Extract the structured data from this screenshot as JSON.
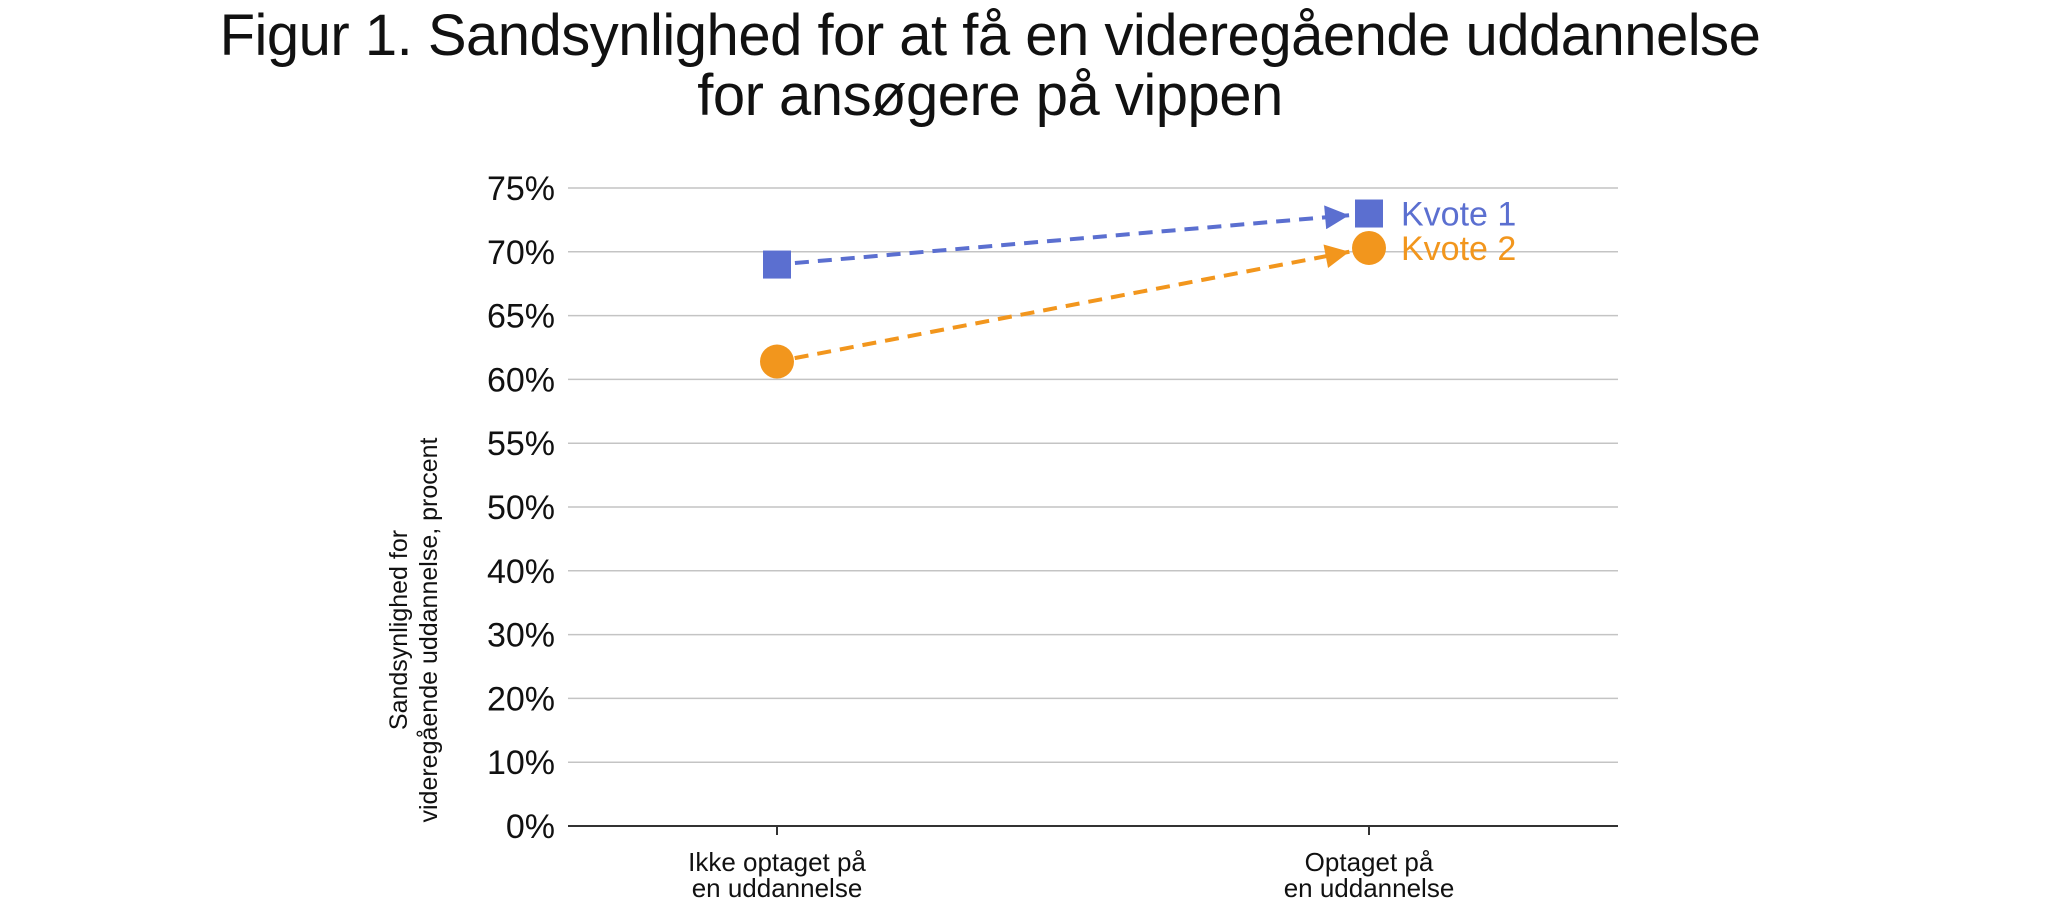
{
  "chart_data": {
    "type": "line",
    "title_lines": [
      "Figur 1. Sandsynlighed for at få en videregående uddannelse",
      "for ansøgere på vippen"
    ],
    "ylabel_lines": [
      "Sandsynlighed for",
      "videregående uddannelse, procent"
    ],
    "xlabel": "",
    "categories": [
      [
        "Ikke optaget på",
        "en uddannelse"
      ],
      [
        "Optaget på",
        "en uddannelse"
      ]
    ],
    "y_ticks": [
      {
        "value": 0,
        "label": "0%"
      },
      {
        "value": 10,
        "label": "10%"
      },
      {
        "value": 20,
        "label": "20%"
      },
      {
        "value": 30,
        "label": "30%"
      },
      {
        "value": 40,
        "label": "40%"
      },
      {
        "value": 50,
        "label": "50%"
      },
      {
        "value": 55,
        "label": "55%"
      },
      {
        "value": 60,
        "label": "60%"
      },
      {
        "value": 65,
        "label": "65%"
      },
      {
        "value": 70,
        "label": "70%"
      },
      {
        "value": 75,
        "label": "75%"
      }
    ],
    "axis_break": "segmented y-axis: 10-point steps from 0% to 50%, 5-point steps from 50% to 75%",
    "ylim": [
      0,
      75
    ],
    "grid": true,
    "legend": "series labels placed to the right of the end points",
    "series": [
      {
        "name": "Kvote 1",
        "values": [
          69,
          73
        ],
        "marker": "square",
        "color": "#5b6fd0",
        "line_style": "dashed arrow"
      },
      {
        "name": "Kvote 2",
        "values": [
          61.4,
          70.3
        ],
        "marker": "circle",
        "color": "#f2961d",
        "line_style": "dashed arrow"
      }
    ]
  },
  "colors": {
    "grid": "#c4c4c4",
    "axis": "#333333",
    "text": "#111111"
  }
}
